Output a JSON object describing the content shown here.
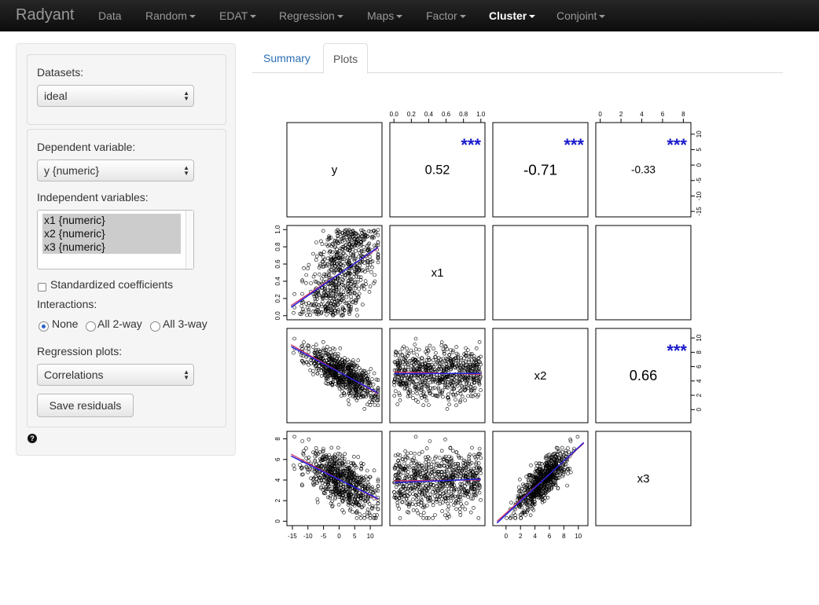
{
  "navbar": {
    "brand": "Radyant",
    "items": [
      {
        "label": "Data",
        "dropdown": false,
        "active": false
      },
      {
        "label": "Random",
        "dropdown": true,
        "active": false
      },
      {
        "label": "EDAT",
        "dropdown": true,
        "active": false
      },
      {
        "label": "Regression",
        "dropdown": true,
        "active": false
      },
      {
        "label": "Maps",
        "dropdown": true,
        "active": false
      },
      {
        "label": "Factor",
        "dropdown": true,
        "active": false
      },
      {
        "label": "Cluster",
        "dropdown": true,
        "active": true
      },
      {
        "label": "Conjoint",
        "dropdown": true,
        "active": false
      }
    ]
  },
  "sidebar": {
    "datasets_label": "Datasets:",
    "datasets_value": "ideal",
    "dependent_label": "Dependent variable:",
    "dependent_value": "y {numeric}",
    "independent_label": "Independent variables:",
    "independent_options": [
      "x1 {numeric}",
      "x2 {numeric}",
      "x3 {numeric}"
    ],
    "standardized_label": "Standardized coefficients",
    "standardized_checked": false,
    "interactions_label": "Interactions:",
    "interactions_options": [
      "None",
      "All 2-way",
      "All 3-way"
    ],
    "interactions_selected": "None",
    "regression_plots_label": "Regression plots:",
    "regression_plots_value": "Correlations",
    "save_button": "Save residuals",
    "help_icon": "question-circle-icon"
  },
  "tabs": [
    {
      "label": "Summary",
      "active": false
    },
    {
      "label": "Plots",
      "active": true
    }
  ],
  "colors": {
    "stars": "#1a1acc",
    "fit_line": "#2020dd",
    "loess_line": "#cc3366"
  },
  "chart_data": {
    "type": "scatter-matrix",
    "variables": [
      "y",
      "x1",
      "x2",
      "x3"
    ],
    "correlations": [
      {
        "row": "y",
        "col": "x1",
        "r": "0.52",
        "stars": "***"
      },
      {
        "row": "y",
        "col": "x2",
        "r": "-0.71",
        "stars": "***"
      },
      {
        "row": "y",
        "col": "x3",
        "r": "-0.33",
        "stars": "***"
      },
      {
        "row": "x2",
        "col": "x3",
        "r": "0.66",
        "stars": "***"
      }
    ],
    "axis_ticks": {
      "y": [
        "-15",
        "-10",
        "-5",
        "0",
        "5",
        "10"
      ],
      "x1": [
        "0.0",
        "0.2",
        "0.4",
        "0.6",
        "0.8",
        "1.0"
      ],
      "x2": [
        "0",
        "2",
        "4",
        "6",
        "8",
        "10"
      ],
      "x3": [
        "0",
        "2",
        "4",
        "6",
        "8"
      ]
    },
    "ranges": {
      "y": [
        -16,
        13
      ],
      "x1": [
        -0.02,
        1.02
      ],
      "x2": [
        -1.5,
        11
      ],
      "x3": [
        -0.2,
        8.5
      ]
    },
    "scatter_panels": [
      {
        "x": "y",
        "y": "x1",
        "slope_sign": 1
      },
      {
        "x": "y",
        "y": "x2",
        "slope_sign": -1
      },
      {
        "x": "x1",
        "y": "x2",
        "slope_sign": 0
      },
      {
        "x": "y",
        "y": "x3",
        "slope_sign": -1
      },
      {
        "x": "x1",
        "y": "x3",
        "slope_sign": 0
      },
      {
        "x": "x2",
        "y": "x3",
        "slope_sign": 1
      }
    ]
  }
}
